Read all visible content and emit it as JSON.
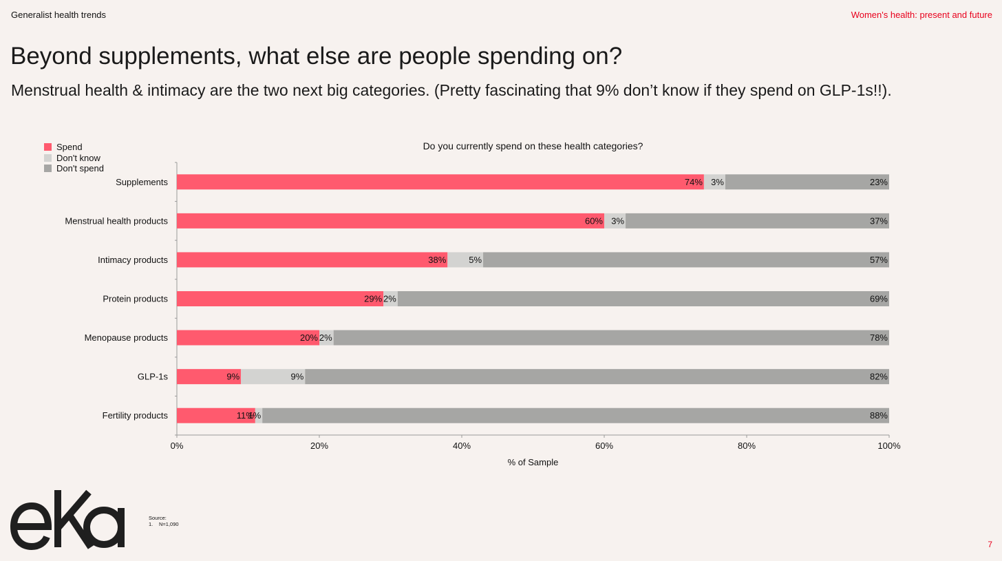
{
  "header": {
    "section": "Generalist health trends",
    "deck_title": "Women's health: present and future"
  },
  "title": "Beyond supplements, what else are people spending on?",
  "subtitle": "Menstrual health & intimacy are the two next big categories. (Pretty fascinating that 9% don’t know if they spend on GLP-1s!!).",
  "colors": {
    "spend": "#ff5a6e",
    "dont_know": "#d3d3d1",
    "dont_spend": "#a6a6a4",
    "accent": "#e8001c"
  },
  "chart_data": {
    "type": "bar",
    "orientation": "horizontal",
    "stacked": true,
    "title": "Do you currently spend on these health categories?",
    "xlabel": "% of Sample",
    "ylabel": "",
    "xlim": [
      0,
      100
    ],
    "xticks": [
      "0%",
      "20%",
      "40%",
      "60%",
      "80%",
      "100%"
    ],
    "legend_position": "top-left",
    "categories": [
      "Supplements",
      "Menstrual health products",
      "Intimacy products",
      "Protein products",
      "Menopause products",
      "GLP-1s",
      "Fertility products"
    ],
    "series": [
      {
        "name": "Spend",
        "color": "#ff5a6e",
        "values": [
          74,
          60,
          38,
          29,
          20,
          9,
          11
        ]
      },
      {
        "name": "Don't know",
        "color": "#d3d3d1",
        "values": [
          3,
          3,
          5,
          2,
          2,
          9,
          1
        ]
      },
      {
        "name": "Don't spend",
        "color": "#a6a6a4",
        "values": [
          23,
          37,
          57,
          69,
          78,
          82,
          88
        ]
      }
    ]
  },
  "footer": {
    "logo_text": "eka",
    "source_label": "Source:",
    "source_note_number": "1.",
    "source_note_text": "N=1,090",
    "page_number": "7"
  }
}
